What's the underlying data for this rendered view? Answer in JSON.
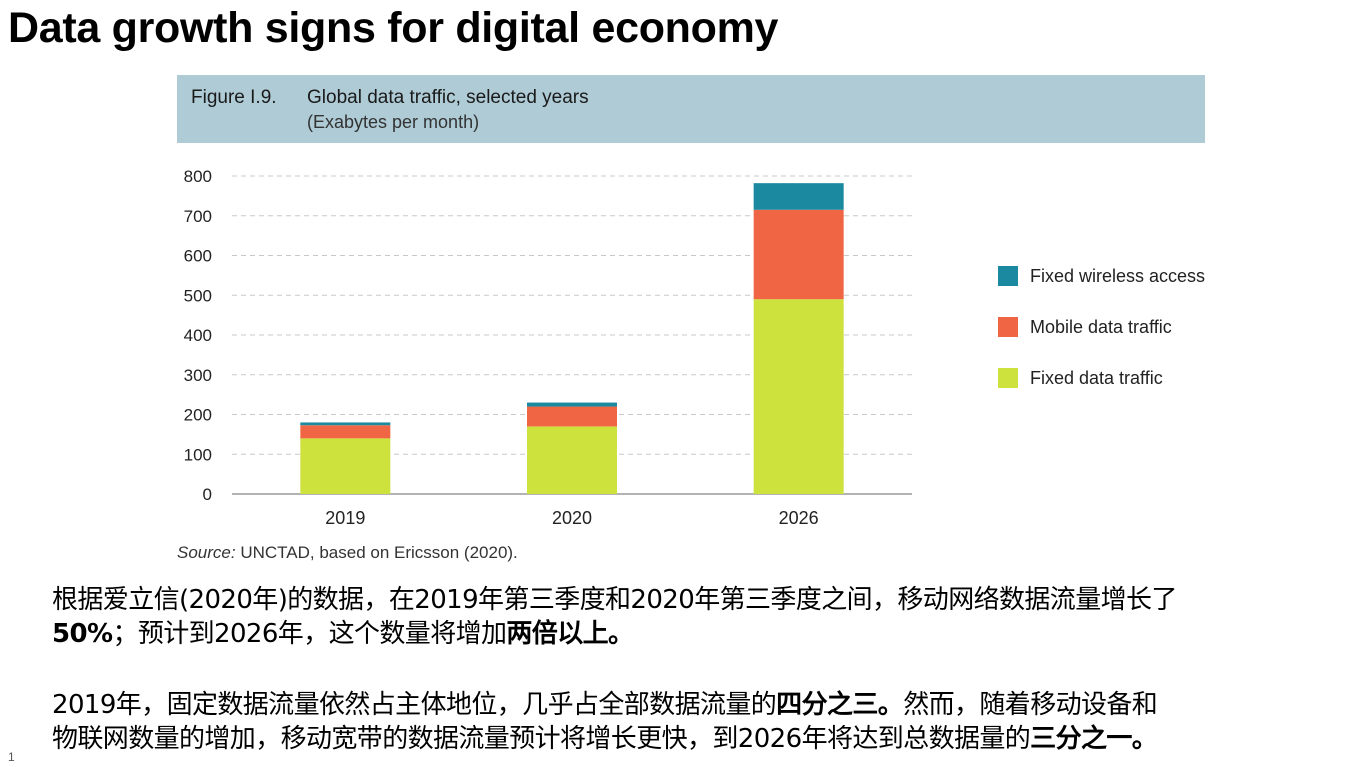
{
  "slide": {
    "title": "Data growth signs for digital economy",
    "page_number": "1"
  },
  "figure": {
    "label": "Figure I.9.",
    "title": "Global data traffic, selected years",
    "unit": "(Exabytes per month)",
    "source_label": "Source:",
    "source_text": " UNCTAD, based on Ericsson (2020)."
  },
  "chart_data": {
    "type": "bar",
    "stacked": true,
    "title": "Global data traffic, selected years",
    "ylabel": "(Exabytes per month)",
    "xlabel": "",
    "categories": [
      "2019",
      "2020",
      "2026"
    ],
    "ylim": [
      0,
      800
    ],
    "yticks": [
      0,
      100,
      200,
      300,
      400,
      500,
      600,
      700,
      800
    ],
    "grid": true,
    "legend_position": "right",
    "series": [
      {
        "name": "Fixed data traffic",
        "color": "#cde23d",
        "values": [
          140,
          170,
          490
        ]
      },
      {
        "name": "Mobile data traffic",
        "color": "#f06644",
        "values": [
          33,
          50,
          225
        ]
      },
      {
        "name": "Fixed wireless access",
        "color": "#1b8aa0",
        "values": [
          7,
          10,
          67
        ]
      }
    ],
    "legend_order": [
      "Fixed wireless access",
      "Mobile data traffic",
      "Fixed data traffic"
    ]
  },
  "text": {
    "p1_line1": "根据爱立信(2020年)的数据，在2019年第三季度和2020年第三季度之间，移动网络数据流量增长了",
    "p1_line2_bold1": "50%",
    "p1_line2_a": "；预计到2026年，这个数量将增加",
    "p1_line2_bold2": "两倍以上。",
    "p2_line1_a": "2019年，固定数据流量依然占主体地位，几乎占全部数据流量的",
    "p2_line1_bold": "四分之三。",
    "p2_line1_b": "然而，随着移动设备和",
    "p2_line2_a": "物联网数量的增加，移动宽带的数据流量预计将增长更快，到2026年将达到总数据量的",
    "p2_line2_bold": "三分之一。"
  }
}
